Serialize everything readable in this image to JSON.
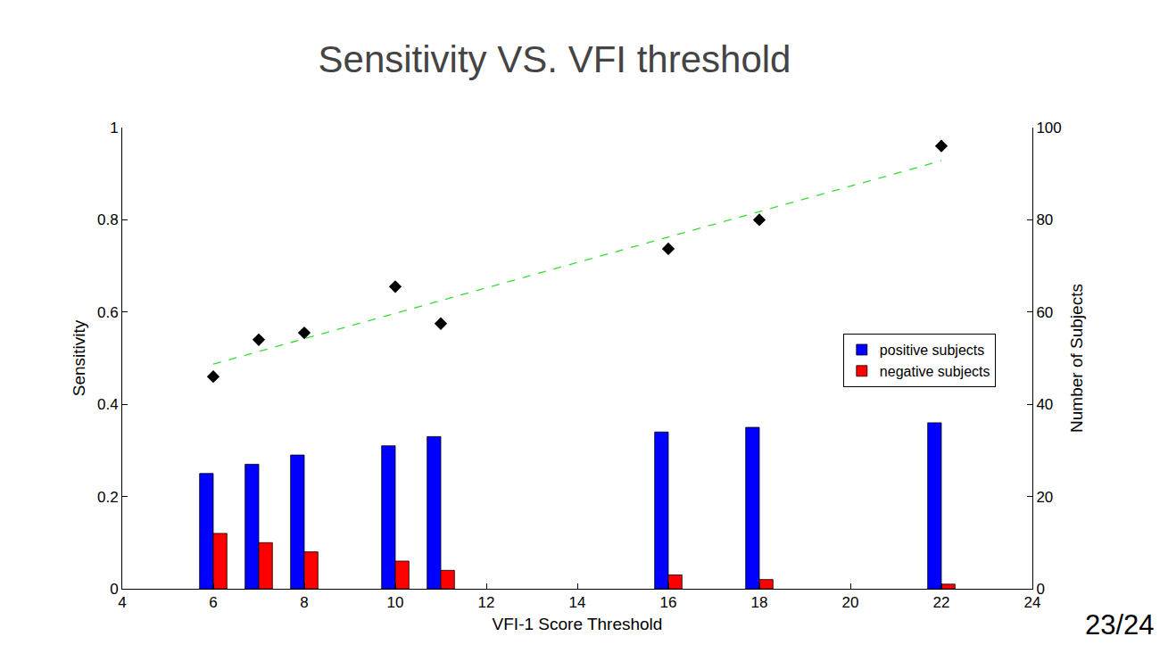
{
  "chart_data": {
    "type": "bar",
    "title": "Sensitivity VS. VFI threshold",
    "x_label": "VFI-1 Score Threshold",
    "y_label": "Sensitivity",
    "y2_label": "Number of Subjects",
    "xlim": [
      4,
      24
    ],
    "xticks": [
      4,
      6,
      8,
      10,
      12,
      14,
      16,
      18,
      20,
      22,
      24
    ],
    "ylim": [
      0,
      1
    ],
    "yticks": [
      0,
      0.2,
      0.4,
      0.6,
      0.8,
      1
    ],
    "y2lim": [
      0,
      100
    ],
    "y2ticks": [
      0,
      20,
      40,
      60,
      80,
      100
    ],
    "grid": false,
    "legend": "right",
    "series": [
      {
        "type": "scatter",
        "color": "#000000",
        "marker": "diamond",
        "x": [
          6,
          7,
          8,
          10,
          11,
          16,
          18,
          22
        ],
        "values": [
          0.46,
          0.54,
          0.555,
          0.655,
          0.575,
          0.737,
          0.8,
          0.96
        ]
      },
      {
        "type": "line",
        "color": "#33dd33",
        "line_style": "dash",
        "x": [
          6,
          22
        ],
        "values": [
          0.487,
          0.928
        ]
      },
      {
        "type": "bar",
        "name": "positive subjects",
        "color": "#0000ff",
        "axis": "y2",
        "x": [
          6,
          7,
          8,
          10,
          11,
          16,
          18,
          22
        ],
        "values": [
          25,
          27,
          29,
          31,
          33,
          34,
          35,
          36
        ]
      },
      {
        "type": "bar",
        "name": "negative subjects",
        "color": "#ff0000",
        "axis": "y2",
        "x": [
          6,
          7,
          8,
          10,
          11,
          16,
          18,
          22
        ],
        "values": [
          12,
          10,
          8,
          6,
          4,
          3,
          2,
          1
        ]
      }
    ],
    "annotations": [
      {
        "text": "23/24"
      }
    ]
  }
}
